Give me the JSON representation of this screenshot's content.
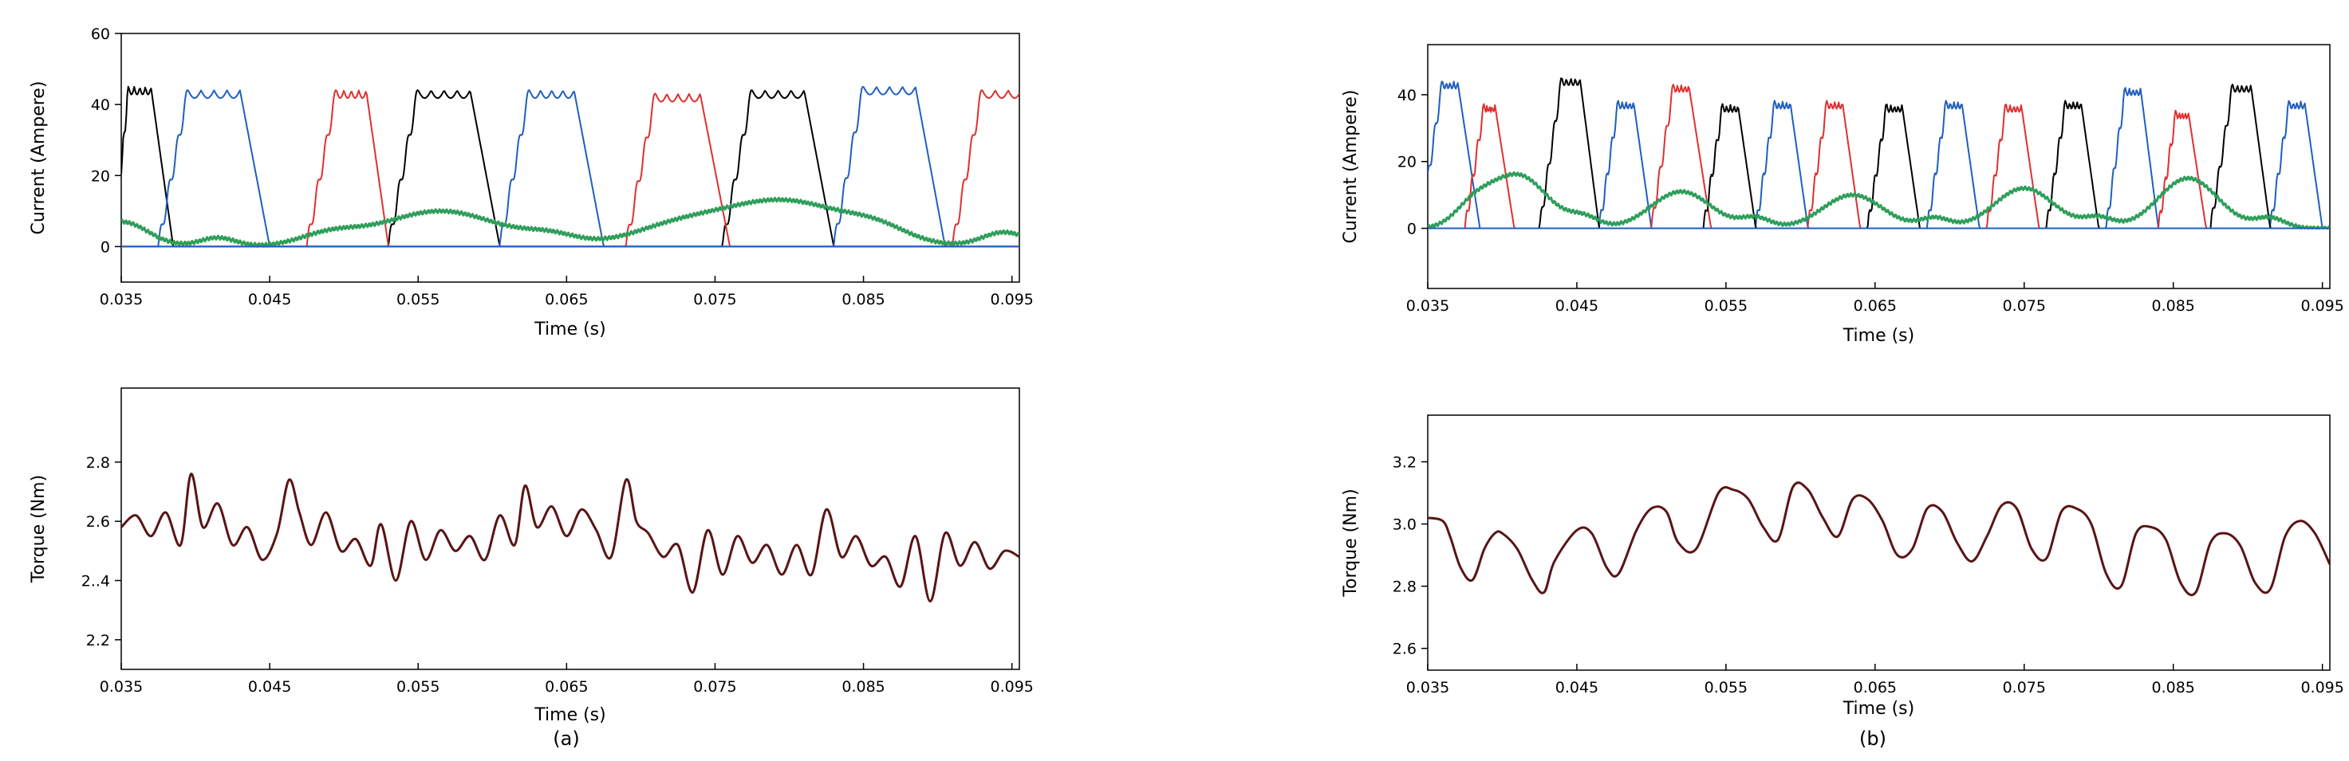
{
  "figure": {
    "captions": [
      "(a)",
      "(b)"
    ]
  },
  "chart_data": [
    {
      "id": "a-current",
      "type": "line",
      "title": "",
      "xlabel": "Time (s)",
      "ylabel": "Current (Ampere)",
      "xlim": [
        0.035,
        0.0955
      ],
      "ylim": [
        -10,
        60
      ],
      "xticks": [
        0.035,
        0.045,
        0.055,
        0.065,
        0.075,
        0.085,
        0.095
      ],
      "xtick_labels": [
        "0.035",
        "0.045",
        "0.055",
        "0.065",
        "0.075",
        "0.085",
        "0.095"
      ],
      "yticks": [
        0,
        20,
        40,
        60
      ],
      "ytick_labels": [
        "0",
        "20",
        "40",
        "60"
      ],
      "grid": false,
      "series": [
        {
          "name": "black",
          "color": "#000000",
          "style": "pulse",
          "pulses": [
            [
              0.0345,
              0.0355,
              0.037,
              0.0385,
              45
            ],
            [
              0.053,
              0.055,
              0.0585,
              0.0605,
              44
            ],
            [
              0.0755,
              0.0775,
              0.081,
              0.083,
              44
            ]
          ]
        },
        {
          "name": "blue",
          "color": "#1f5fbf",
          "style": "pulse",
          "pulses": [
            [
              0.0375,
              0.0395,
              0.043,
              0.045,
              44
            ],
            [
              0.0605,
              0.0625,
              0.0655,
              0.0675,
              44
            ],
            [
              0.083,
              0.085,
              0.0885,
              0.0905,
              45
            ]
          ]
        },
        {
          "name": "red",
          "color": "#e03030",
          "style": "pulse",
          "pulses": [
            [
              0.0475,
              0.0495,
              0.0515,
              0.053,
              44
            ],
            [
              0.069,
              0.071,
              0.074,
              0.076,
              43
            ],
            [
              0.091,
              0.093,
              0.0965,
              0.0985,
              44
            ]
          ]
        },
        {
          "name": "green",
          "color": "#2e9e5a",
          "style": "bumps",
          "base": 0,
          "bumps": [
            [
              0.035,
              7,
              0.0018
            ],
            [
              0.0415,
              2.5,
              0.0012
            ],
            [
              0.049,
              3,
              0.002
            ],
            [
              0.0565,
              10,
              0.004
            ],
            [
              0.064,
              2.5,
              0.0018
            ],
            [
              0.072,
              4,
              0.003
            ],
            [
              0.0795,
              13,
              0.0045
            ],
            [
              0.086,
              3,
              0.002
            ],
            [
              0.0945,
              4,
              0.0015
            ]
          ]
        },
        {
          "name": "zero-line",
          "color": "#1f5fbf",
          "style": "flat",
          "value": 0
        }
      ]
    },
    {
      "id": "a-torque",
      "type": "line",
      "title": "",
      "xlabel": "Time (s)",
      "ylabel": "Torque (Nm)",
      "xlim": [
        0.035,
        0.0955
      ],
      "ylim": [
        2.1,
        3.05
      ],
      "xticks": [
        0.035,
        0.045,
        0.055,
        0.065,
        0.075,
        0.085,
        0.095
      ],
      "xtick_labels": [
        "0.035",
        "0.045",
        "0.055",
        "0.065",
        "0.075",
        "0.085",
        "0.095"
      ],
      "yticks": [
        2.2,
        2.4,
        2.6,
        2.8
      ],
      "ytick_labels": [
        "2.2",
        "2..4",
        "2.6",
        "2.8"
      ],
      "grid": false,
      "series": [
        {
          "name": "torque",
          "color": "#5a1414",
          "x": [
            0.035,
            0.036,
            0.037,
            0.038,
            0.039,
            0.0397,
            0.0405,
            0.0415,
            0.0425,
            0.0435,
            0.0445,
            0.0455,
            0.0463,
            0.047,
            0.0478,
            0.0488,
            0.0498,
            0.0508,
            0.0518,
            0.0525,
            0.0535,
            0.0545,
            0.0555,
            0.0565,
            0.0575,
            0.0585,
            0.0595,
            0.0605,
            0.0615,
            0.0622,
            0.063,
            0.064,
            0.065,
            0.066,
            0.067,
            0.068,
            0.069,
            0.0697,
            0.0705,
            0.0715,
            0.0725,
            0.0735,
            0.0745,
            0.0755,
            0.0765,
            0.0775,
            0.0785,
            0.0795,
            0.0805,
            0.0815,
            0.0825,
            0.0835,
            0.0845,
            0.0855,
            0.0865,
            0.0875,
            0.0885,
            0.0895,
            0.0905,
            0.0915,
            0.0925,
            0.0935,
            0.0945,
            0.0955
          ],
          "y": [
            2.58,
            2.62,
            2.55,
            2.63,
            2.52,
            2.76,
            2.58,
            2.66,
            2.52,
            2.58,
            2.47,
            2.56,
            2.74,
            2.63,
            2.52,
            2.63,
            2.5,
            2.54,
            2.45,
            2.59,
            2.4,
            2.6,
            2.47,
            2.57,
            2.5,
            2.55,
            2.47,
            2.62,
            2.52,
            2.72,
            2.58,
            2.65,
            2.55,
            2.64,
            2.57,
            2.48,
            2.74,
            2.6,
            2.56,
            2.48,
            2.52,
            2.36,
            2.57,
            2.42,
            2.55,
            2.46,
            2.52,
            2.42,
            2.52,
            2.42,
            2.64,
            2.48,
            2.55,
            2.45,
            2.48,
            2.38,
            2.55,
            2.33,
            2.56,
            2.45,
            2.53,
            2.44,
            2.5,
            2.48
          ]
        }
      ]
    },
    {
      "id": "b-current",
      "type": "line",
      "title": "",
      "xlabel": "Time (s)",
      "ylabel": "Current (Ampere)",
      "xlim": [
        0.035,
        0.0955
      ],
      "ylim": [
        -18,
        55
      ],
      "xticks": [
        0.035,
        0.045,
        0.055,
        0.065,
        0.075,
        0.085,
        0.095
      ],
      "xtick_labels": [
        "0.035",
        "0.045",
        "0.055",
        "0.065",
        "0.075",
        "0.085",
        "0.095"
      ],
      "yticks": [
        0,
        20,
        40
      ],
      "ytick_labels": [
        "0",
        "20",
        "40"
      ],
      "grid": false,
      "series": [
        {
          "name": "blue",
          "color": "#1f5fbf",
          "style": "pulse",
          "pulses": [
            [
              0.0345,
              0.036,
              0.037,
              0.0385,
              44
            ],
            [
              0.0465,
              0.0478,
              0.0488,
              0.05,
              38
            ],
            [
              0.057,
              0.0583,
              0.0593,
              0.0605,
              38
            ],
            [
              0.0685,
              0.0698,
              0.0708,
              0.072,
              38
            ],
            [
              0.0805,
              0.0818,
              0.0828,
              0.084,
              42
            ],
            [
              0.0915,
              0.0928,
              0.0938,
              0.095,
              38
            ]
          ]
        },
        {
          "name": "red",
          "color": "#e03030",
          "style": "pulse",
          "pulses": [
            [
              0.0375,
              0.0388,
              0.0395,
              0.0408,
              37
            ],
            [
              0.05,
              0.0515,
              0.0525,
              0.054,
              43
            ],
            [
              0.0605,
              0.0618,
              0.0628,
              0.064,
              38
            ],
            [
              0.0725,
              0.0738,
              0.0748,
              0.076,
              37
            ],
            [
              0.084,
              0.0852,
              0.086,
              0.0872,
              35
            ]
          ]
        },
        {
          "name": "black",
          "color": "#000000",
          "style": "pulse",
          "pulses": [
            [
              0.0425,
              0.044,
              0.0452,
              0.0465,
              45
            ],
            [
              0.0535,
              0.0548,
              0.0558,
              0.057,
              37
            ],
            [
              0.0645,
              0.0658,
              0.0668,
              0.068,
              37
            ],
            [
              0.0765,
              0.0778,
              0.0788,
              0.08,
              38
            ],
            [
              0.0875,
              0.089,
              0.0902,
              0.0915,
              43
            ]
          ]
        },
        {
          "name": "green",
          "color": "#2e9e5a",
          "style": "bumps",
          "base": 0,
          "bumps": [
            [
              0.038,
              5,
              0.0012
            ],
            [
              0.041,
              16,
              0.002
            ],
            [
              0.0455,
              3,
              0.001
            ],
            [
              0.052,
              11,
              0.002
            ],
            [
              0.057,
              3,
              0.001
            ],
            [
              0.0635,
              10,
              0.002
            ],
            [
              0.069,
              3,
              0.001
            ],
            [
              0.075,
              12,
              0.002
            ],
            [
              0.08,
              3,
              0.001
            ],
            [
              0.086,
              15,
              0.002
            ],
            [
              0.0915,
              3,
              0.001
            ]
          ]
        },
        {
          "name": "zero-line",
          "color": "#1f5fbf",
          "style": "flat",
          "value": 0
        }
      ]
    },
    {
      "id": "b-torque",
      "type": "line",
      "title": "",
      "xlabel": "Time (s)",
      "ylabel": "Torque (Nm)",
      "xlim": [
        0.035,
        0.0955
      ],
      "ylim": [
        2.53,
        3.35
      ],
      "xticks": [
        0.035,
        0.045,
        0.055,
        0.065,
        0.075,
        0.085,
        0.095
      ],
      "xtick_labels": [
        "0.035",
        "0.045",
        "0.055",
        "0.065",
        "0.075",
        "0.085",
        "0.095"
      ],
      "yticks": [
        2.6,
        2.8,
        3.0,
        3.2
      ],
      "ytick_labels": [
        "2.6",
        "2.8",
        "3.0",
        "3.2"
      ],
      "grid": false,
      "series": [
        {
          "name": "torque",
          "color": "#5a1414",
          "x": [
            0.035,
            0.036,
            0.0365,
            0.0372,
            0.038,
            0.0388,
            0.0395,
            0.04,
            0.041,
            0.042,
            0.0428,
            0.0435,
            0.045,
            0.046,
            0.047,
            0.0478,
            0.049,
            0.05,
            0.051,
            0.0518,
            0.053,
            0.0545,
            0.0555,
            0.0565,
            0.0575,
            0.0585,
            0.0595,
            0.0605,
            0.0615,
            0.0625,
            0.0635,
            0.0645,
            0.0655,
            0.0665,
            0.0675,
            0.0685,
            0.0695,
            0.0705,
            0.0715,
            0.0725,
            0.0735,
            0.0745,
            0.0755,
            0.0765,
            0.0775,
            0.0785,
            0.0795,
            0.0805,
            0.0815,
            0.0825,
            0.0835,
            0.0845,
            0.0855,
            0.0865,
            0.0875,
            0.0885,
            0.0895,
            0.0905,
            0.0915,
            0.0925,
            0.0935,
            0.0945,
            0.0955
          ],
          "y": [
            3.02,
            3.01,
            2.96,
            2.86,
            2.82,
            2.92,
            2.97,
            2.97,
            2.92,
            2.82,
            2.78,
            2.88,
            2.98,
            2.97,
            2.86,
            2.84,
            2.98,
            3.05,
            3.04,
            2.94,
            2.92,
            3.1,
            3.11,
            3.08,
            2.99,
            2.95,
            3.12,
            3.11,
            3.02,
            2.96,
            3.08,
            3.08,
            3.01,
            2.9,
            2.92,
            3.05,
            3.04,
            2.94,
            2.88,
            2.96,
            3.06,
            3.05,
            2.92,
            2.89,
            3.04,
            3.05,
            3.0,
            2.84,
            2.8,
            2.97,
            2.99,
            2.95,
            2.81,
            2.78,
            2.94,
            2.97,
            2.93,
            2.81,
            2.79,
            2.96,
            3.01,
            2.97,
            2.87
          ]
        }
      ]
    }
  ]
}
